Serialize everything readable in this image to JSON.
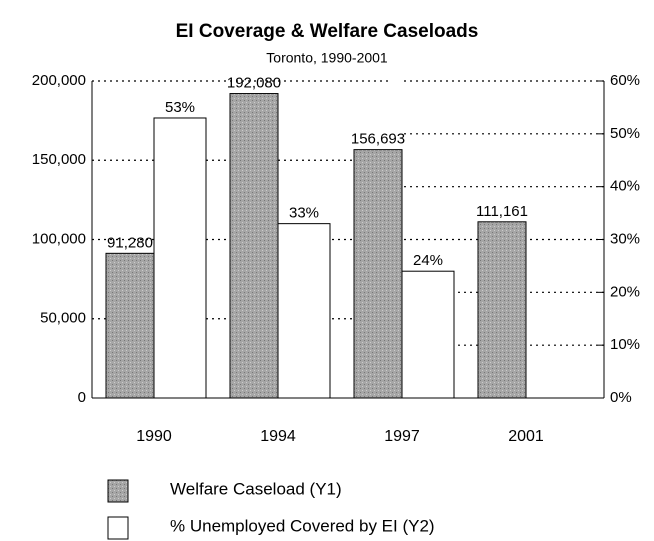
{
  "chart_data": {
    "type": "bar",
    "title": "EI Coverage & Welfare Caseloads",
    "subtitle": "Toronto, 1990-2001",
    "categories": [
      "1990",
      "1994",
      "1997",
      "2001"
    ],
    "series": [
      {
        "name": "Welfare Caseload (Y1)",
        "color": "#a6a6a6",
        "values": [
          91280,
          192080,
          156693,
          111161
        ],
        "value_labels": [
          "91,280",
          "192,080",
          "156,693",
          "111,161"
        ]
      },
      {
        "name": "% Unemployed Covered by EI (Y2)",
        "color": "#ffffff",
        "axis": "y2",
        "values": [
          53,
          33,
          24,
          null
        ],
        "value_labels": [
          "53%",
          "33%",
          "24%",
          null
        ]
      }
    ],
    "ylim": [
      0,
      200000
    ],
    "yticks": [
      0,
      {
        "value": 50000,
        "label": "50,000"
      },
      {
        "value": 100000,
        "label": "100,000"
      },
      {
        "value": 150000,
        "label": "150,000"
      },
      {
        "value": 200000,
        "label": "200,000"
      }
    ],
    "y2lim": [
      0,
      60
    ],
    "y2ticks": [
      {
        "value": 0,
        "label": "0%"
      },
      {
        "value": 10,
        "label": "10%"
      },
      {
        "value": 20,
        "label": "20%"
      },
      {
        "value": 30,
        "label": "30%"
      },
      {
        "value": 40,
        "label": "40%"
      },
      {
        "value": 50,
        "label": "50%"
      },
      {
        "value": 60,
        "label": "60%"
      }
    ],
    "grid": true
  }
}
